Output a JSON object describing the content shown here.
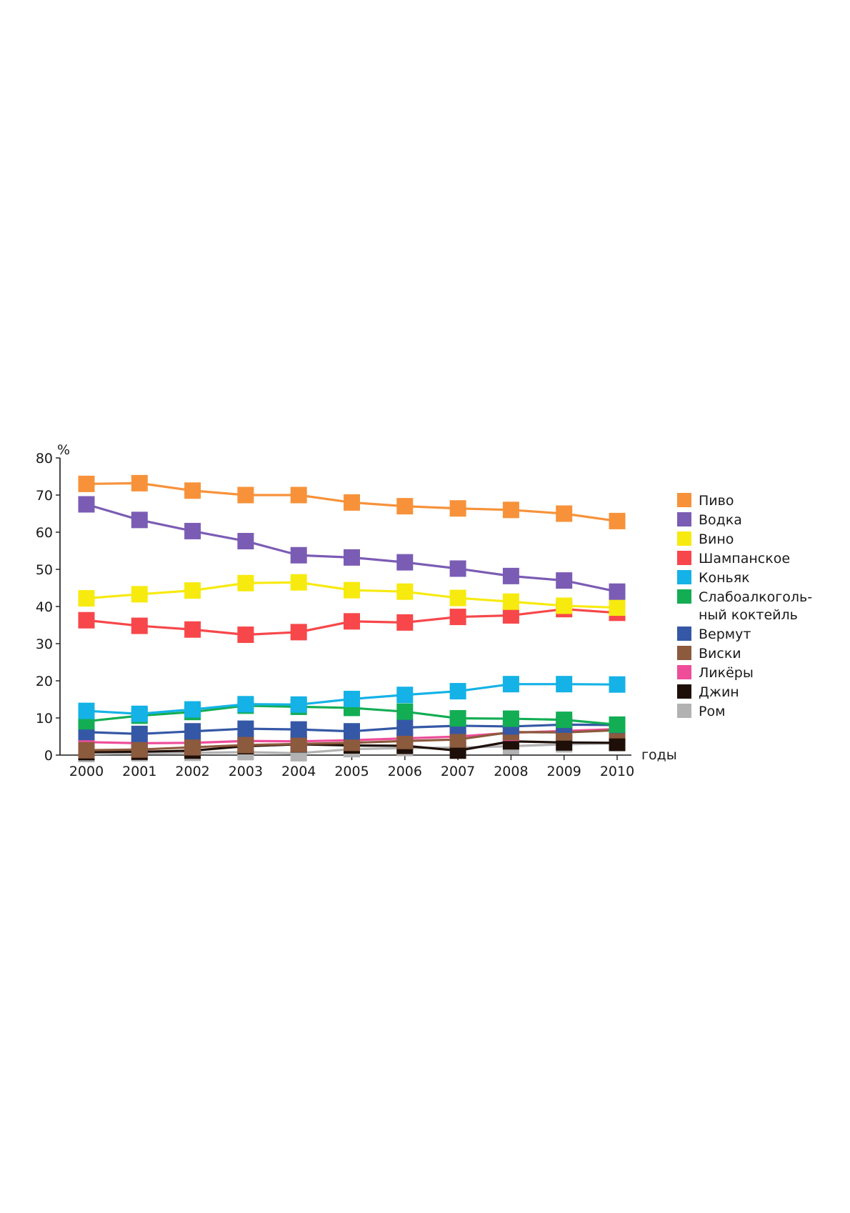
{
  "chart_data": {
    "type": "line",
    "title": "",
    "ylabel": "%",
    "xlabel": "годы",
    "ylim": [
      0,
      80
    ],
    "yticks": [
      0,
      10,
      20,
      30,
      40,
      50,
      60,
      70,
      80
    ],
    "x": [
      "2000",
      "2001",
      "2002",
      "2003",
      "2004",
      "2005",
      "2006",
      "2007",
      "2008",
      "2009",
      "2010"
    ],
    "grid": false,
    "legend_position": "right",
    "series": [
      {
        "name": "Пиво",
        "color": "#f7923a",
        "values": [
          73,
          73.2,
          71.2,
          70,
          70,
          68,
          67,
          66.4,
          66,
          65,
          63
        ]
      },
      {
        "name": "Водка",
        "color": "#7b5cb4",
        "values": [
          67.5,
          63.3,
          60.3,
          57.6,
          53.8,
          53.2,
          51.9,
          50.2,
          48.2,
          47,
          44
        ]
      },
      {
        "name": "Вино",
        "color": "#f7ea0f",
        "values": [
          42.2,
          43.3,
          44.3,
          46.3,
          46.5,
          44.4,
          44,
          42.3,
          41.3,
          40.2,
          39.7
        ]
      },
      {
        "name": "Шампанское",
        "color": "#f7474a",
        "values": [
          36.3,
          34.8,
          33.8,
          32.4,
          33.1,
          36,
          35.7,
          37.2,
          37.6,
          39.3,
          38.3
        ]
      },
      {
        "name": "Коньяк",
        "color": "#14b2e6",
        "values": [
          11.9,
          11.1,
          12.3,
          13.7,
          13.6,
          15.1,
          16.2,
          17.2,
          19.1,
          19.1,
          19
        ]
      },
      {
        "name": "Слабоалкоголь-ный коктейль",
        "legend_lines": [
          "Слабоалкоголь-",
          "ный коктейль"
        ],
        "color": "#13ad54",
        "values": [
          9.1,
          10.6,
          11.6,
          13.3,
          13,
          12.7,
          11.7,
          9.9,
          9.8,
          9.5,
          8.2
        ]
      },
      {
        "name": "Вермут",
        "color": "#3558a6",
        "values": [
          6.2,
          5.7,
          6.4,
          7.1,
          6.9,
          6.4,
          7.4,
          7.9,
          7.7,
          8.2,
          8.1
        ]
      },
      {
        "name": "Виски",
        "color": "#8c5a3d",
        "values": [
          1.3,
          1.5,
          2.1,
          2.7,
          3,
          3.3,
          3.8,
          4.2,
          6.2,
          6.1,
          6.7
        ]
      },
      {
        "name": "Ликёры",
        "color": "#ee4d9a",
        "values": [
          3.5,
          3.2,
          3.3,
          3.8,
          3.7,
          4,
          4.5,
          5,
          6,
          6.5,
          7
        ]
      },
      {
        "name": "Джин",
        "color": "#1e0f08",
        "values": [
          0.8,
          0.9,
          1.2,
          2.4,
          2.9,
          2.6,
          2.5,
          1.2,
          3.7,
          3.4,
          3.3
        ]
      },
      {
        "name": "Ром",
        "color": "#b2b2b2",
        "values": [
          0.3,
          0.5,
          0.6,
          0.8,
          0.5,
          1.6,
          1.9,
          2,
          2.4,
          2.9,
          3.2
        ]
      }
    ]
  }
}
